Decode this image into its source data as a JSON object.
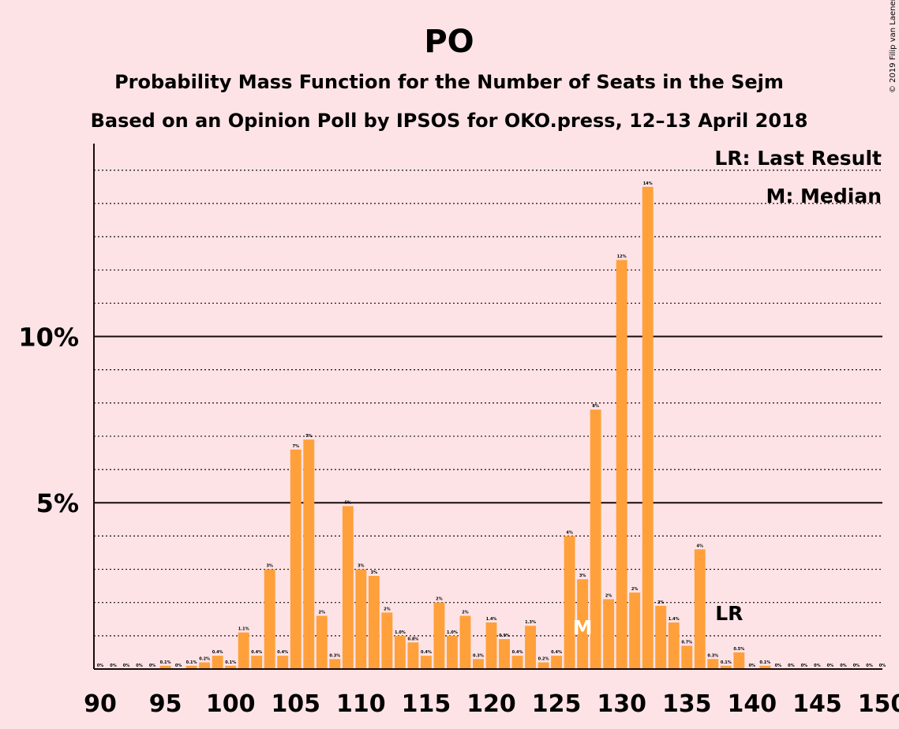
{
  "chart_data": {
    "type": "bar",
    "title": "PO",
    "subtitle_1": "Probability Mass Function for the Number of Seats in the Sejm",
    "subtitle_2": "Based on an Opinion Poll by IPSOS for OKO.press, 12–13 April 2018",
    "copyright": "© 2019 Filip van Laenen",
    "legend": {
      "last_result": "LR: Last Result",
      "median": "M: Median",
      "placement": "top-right"
    },
    "last_result_seat": 138,
    "last_result_marker": "LR",
    "median_seat": 127,
    "median_marker": "M",
    "xlim": [
      90,
      150
    ],
    "ylim": [
      0,
      15.8
    ],
    "x_ticks": [
      90,
      95,
      100,
      105,
      110,
      115,
      120,
      125,
      130,
      135,
      140,
      145,
      150
    ],
    "y_ticks": [
      {
        "value": 5,
        "label": "5%"
      },
      {
        "value": 10,
        "label": "10%"
      }
    ],
    "minor_grid_step": 1,
    "bar_color": "#ffa03a",
    "x": [
      90,
      91,
      92,
      93,
      94,
      95,
      96,
      97,
      98,
      99,
      100,
      101,
      102,
      103,
      104,
      105,
      106,
      107,
      108,
      109,
      110,
      111,
      112,
      113,
      114,
      115,
      116,
      117,
      118,
      119,
      120,
      121,
      122,
      123,
      124,
      125,
      126,
      127,
      128,
      129,
      130,
      131,
      132,
      133,
      134,
      135,
      136,
      137,
      138,
      139,
      140,
      141,
      142,
      143,
      144,
      145,
      146,
      147,
      148,
      149,
      150
    ],
    "values": [
      0,
      0,
      0,
      0,
      0,
      0.1,
      0,
      0.1,
      0.2,
      0.4,
      0.1,
      1.1,
      0.4,
      3.0,
      0.4,
      6.6,
      6.9,
      1.6,
      0.3,
      4.9,
      3.0,
      2.8,
      1.7,
      1.0,
      0.8,
      0.4,
      2.0,
      1.0,
      1.6,
      0.3,
      1.4,
      0.9,
      0.4,
      1.3,
      0.2,
      0.4,
      4.0,
      2.7,
      7.8,
      2.1,
      12.3,
      2.3,
      14.5,
      1.9,
      1.4,
      0.7,
      3.6,
      0.3,
      0.1,
      0.5,
      0,
      0.1,
      0,
      0,
      0,
      0,
      0,
      0,
      0,
      0,
      0
    ],
    "labels": [
      "0%",
      "0%",
      "0%",
      "0%",
      "0%",
      "0.1%",
      "0%",
      "0.1%",
      "0.2%",
      "0.4%",
      "0.1%",
      "1.1%",
      "0.4%",
      "3%",
      "0.4%",
      "7%",
      "7%",
      "2%",
      "0.3%",
      "5%",
      "3%",
      "3%",
      "2%",
      "1.0%",
      "0.8%",
      "0.4%",
      "2%",
      "1.0%",
      "2%",
      "0.3%",
      "1.4%",
      "0.9%",
      "0.4%",
      "1.3%",
      "0.2%",
      "0.4%",
      "4%",
      "3%",
      "8%",
      "2%",
      "12%",
      "2%",
      "14%",
      "2%",
      "1.4%",
      "0.7%",
      "4%",
      "0.3%",
      "0.1%",
      "0.5%",
      "0%",
      "0.1%",
      "0%",
      "0%",
      "0%",
      "0%",
      "0%",
      "0%",
      "0%",
      "0%",
      "0%"
    ]
  }
}
